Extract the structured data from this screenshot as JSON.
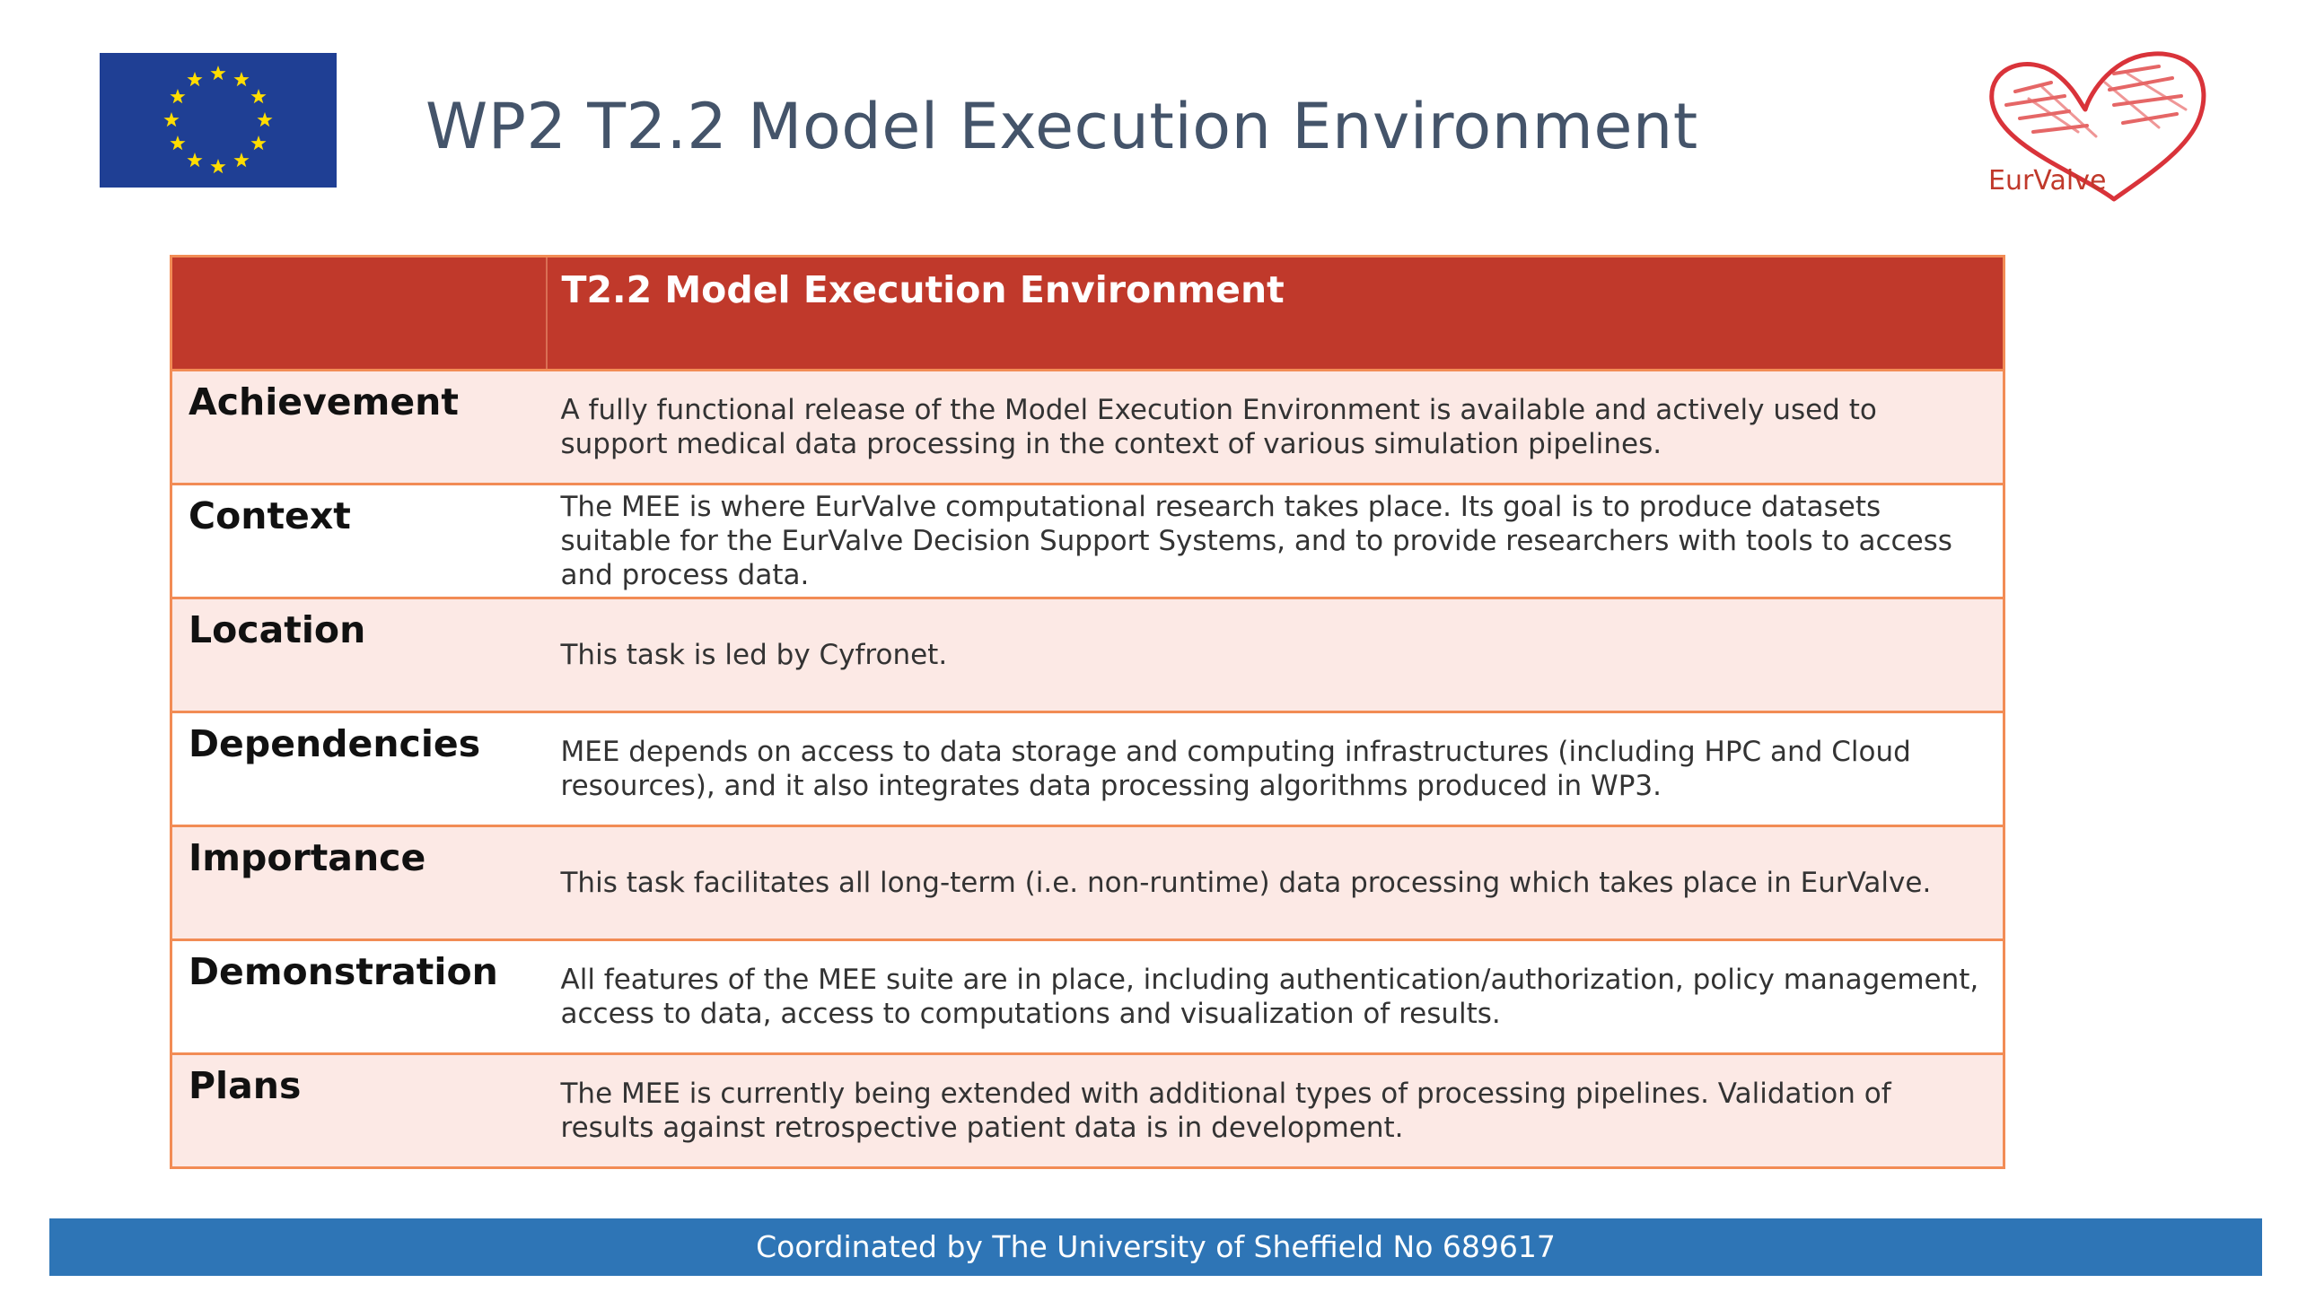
{
  "eu_flag": {
    "icon": "eu-flag-icon",
    "background": "#1f3f94",
    "star_color": "#ffdd00"
  },
  "title": "WP2 T2.2 Model Execution Environment",
  "logo": {
    "icon": "heart-logo-icon",
    "text": "EurValve",
    "color": "#c0392b"
  },
  "table": {
    "header": {
      "label": "",
      "title": "T2.2 Model Execution Environment"
    },
    "header_color": "#c0392b",
    "border_color": "#f28c55",
    "alt_row_color": "#fce9e5",
    "rows": [
      {
        "label": "Achievement",
        "text": "A fully functional release of the Model Execution Environment is available and actively used to support medical data processing in the context of various simulation pipelines."
      },
      {
        "label": "Context",
        "text": "The MEE is where EurValve computational research takes place. Its goal is to produce datasets suitable for the EurValve Decision Support Systems, and to provide researchers with tools to access and process data."
      },
      {
        "label": "Location",
        "text": "This task is led by Cyfronet."
      },
      {
        "label": "Dependencies",
        "text": "MEE depends on access to data storage and computing infrastructures (including HPC and Cloud resources), and it also integrates data processing algorithms produced in WP3."
      },
      {
        "label": "Importance",
        "text": "This task facilitates all long-term (i.e. non-runtime) data processing which takes place in EurValve."
      },
      {
        "label": "Demonstration",
        "text": "All features of the MEE suite are in place, including authentication/authorization, policy management, access to data, access to computations and visualization of results."
      },
      {
        "label": "Plans",
        "text": "The MEE is currently being extended with additional types of processing pipelines. Validation of results against retrospective patient data is in development."
      }
    ]
  },
  "footer": {
    "text": "Coordinated by The University of Sheffield No 689617",
    "color": "#2e75b6"
  }
}
